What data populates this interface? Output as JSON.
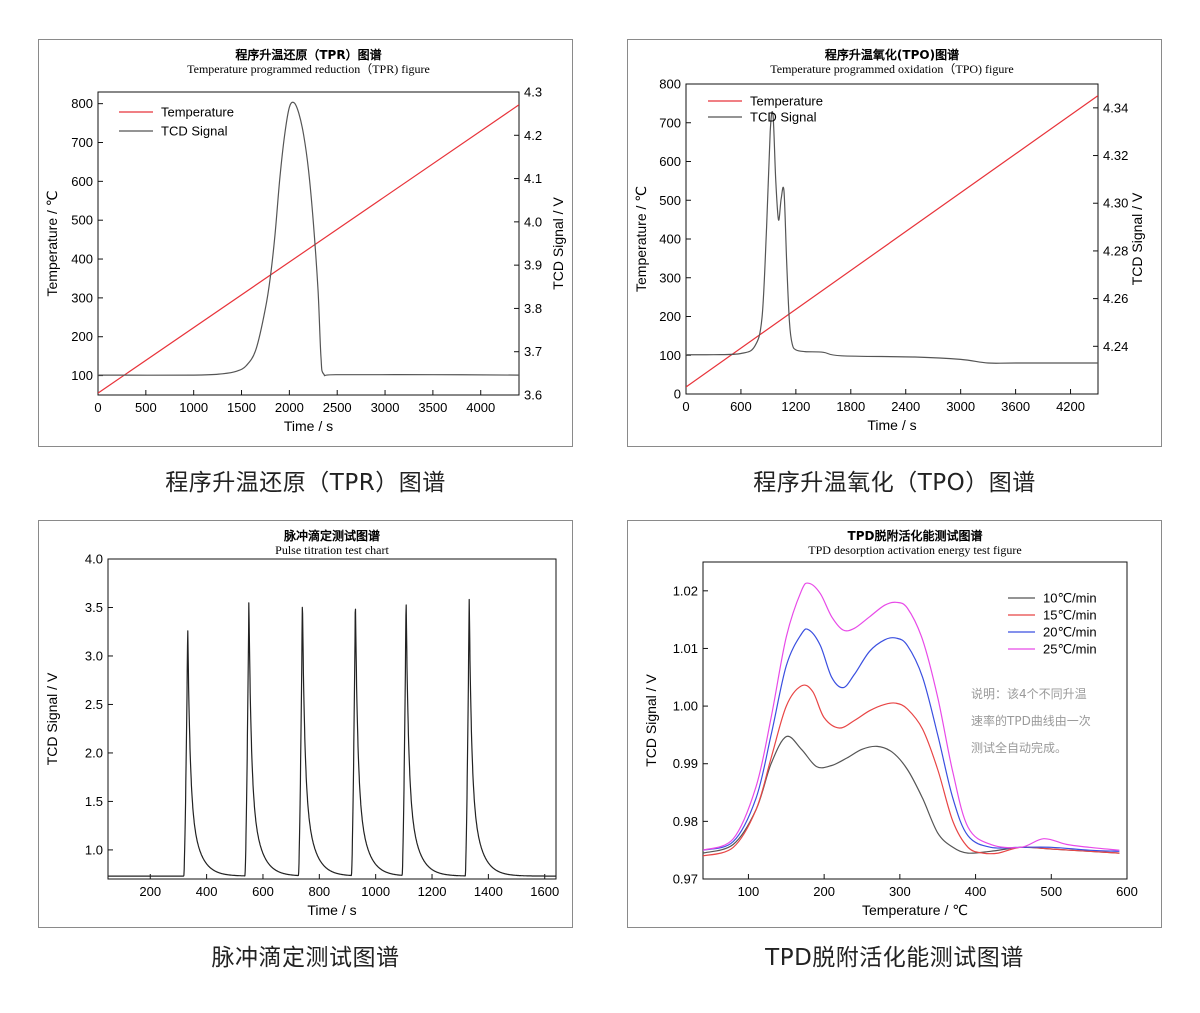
{
  "chart_data": [
    {
      "type": "line",
      "title": "程序升温还原（TPR）图谱",
      "subtitle": "Temperature programmed reduction（TPR) figure",
      "caption": "程序升温还原（TPR）图谱",
      "xlabel": "Time / s",
      "ylabel": "Temperature / ℃",
      "y2label": "TCD Signal / V",
      "xlim": [
        0,
        4400
      ],
      "ylim": [
        50,
        830
      ],
      "y2lim": [
        3.6,
        4.3
      ],
      "xticks": [
        0,
        500,
        1000,
        1500,
        2000,
        2500,
        3000,
        3500,
        4000
      ],
      "yticks": [
        100,
        200,
        300,
        400,
        500,
        600,
        700,
        800
      ],
      "y2ticks": [
        3.6,
        3.7,
        3.8,
        3.9,
        4.0,
        4.1,
        4.2,
        4.3
      ],
      "legend_position": "top-left",
      "series": [
        {
          "name": "Temperature",
          "axis": "left",
          "color": "#e8333a",
          "x": [
            0,
            4400
          ],
          "y": [
            55,
            797
          ]
        },
        {
          "name": "TCD Signal",
          "axis": "right",
          "color": "#555555",
          "x": [
            0,
            1000,
            1300,
            1450,
            1550,
            1650,
            1750,
            1800,
            1850,
            1900,
            1950,
            2000,
            2050,
            2100,
            2150,
            2200,
            2250,
            2300,
            2330,
            2360,
            2500,
            3500,
            4400
          ],
          "y": [
            3.646,
            3.646,
            3.649,
            3.655,
            3.668,
            3.705,
            3.8,
            3.87,
            3.97,
            4.1,
            4.2,
            4.265,
            4.275,
            4.25,
            4.2,
            4.12,
            4.0,
            3.84,
            3.69,
            3.648,
            3.647,
            3.647,
            3.646
          ]
        }
      ]
    },
    {
      "type": "line",
      "title": "程序升温氧化(TPO)图谱",
      "subtitle": "Temperature programmed oxidation（TPO) figure",
      "caption": "程序升温氧化（TPO）图谱",
      "xlabel": "Time / s",
      "ylabel": "Temperature / ℃",
      "y2label": "TCD Signal / V",
      "xlim": [
        0,
        4500
      ],
      "ylim": [
        0,
        800
      ],
      "y2lim": [
        4.22,
        4.35
      ],
      "xticks": [
        0,
        600,
        1200,
        1800,
        2400,
        3000,
        3600,
        4200
      ],
      "yticks": [
        0,
        100,
        200,
        300,
        400,
        500,
        600,
        700,
        800
      ],
      "y2ticks": [
        4.24,
        4.26,
        4.28,
        4.3,
        4.32,
        4.34
      ],
      "legend_position": "top-left",
      "series": [
        {
          "name": "Temperature",
          "axis": "left",
          "color": "#e8333a",
          "x": [
            0,
            4500
          ],
          "y": [
            18,
            770
          ]
        },
        {
          "name": "TCD Signal",
          "axis": "right",
          "color": "#555555",
          "x": [
            0,
            300,
            600,
            750,
            830,
            880,
            920,
            950,
            980,
            1010,
            1040,
            1070,
            1100,
            1130,
            1160,
            1200,
            1300,
            1500,
            1700,
            2500,
            3000,
            3300,
            3600,
            4500
          ],
          "y": [
            4.2365,
            4.2365,
            4.237,
            4.24,
            4.252,
            4.29,
            4.33,
            4.337,
            4.31,
            4.293,
            4.302,
            4.305,
            4.275,
            4.25,
            4.241,
            4.2385,
            4.2378,
            4.2375,
            4.236,
            4.2355,
            4.2345,
            4.233,
            4.233,
            4.233
          ]
        }
      ]
    },
    {
      "type": "line",
      "title": "脉冲滴定测试图谱",
      "subtitle": "Pulse titration test chart",
      "caption": "脉冲滴定测试图谱",
      "xlabel": "Time / s",
      "ylabel": "TCD Signal / V",
      "xlim": [
        50,
        1640
      ],
      "ylim": [
        0.7,
        4.0
      ],
      "xticks": [
        200,
        400,
        600,
        800,
        1000,
        1200,
        1400,
        1600
      ],
      "yticks": [
        1.0,
        1.5,
        2.0,
        2.5,
        3.0,
        3.5,
        4.0
      ],
      "series": [
        {
          "name": "TCD Signal",
          "axis": "left",
          "color": "#222222",
          "baseline": 0.73,
          "peaks": [
            {
              "t": 333,
              "h": 3.31
            },
            {
              "t": 550,
              "h": 3.59
            },
            {
              "t": 740,
              "h": 3.6
            },
            {
              "t": 928,
              "h": 3.6
            },
            {
              "t": 1108,
              "h": 3.61
            },
            {
              "t": 1332,
              "h": 3.6
            }
          ]
        }
      ]
    },
    {
      "type": "line",
      "title": "TPD脱附活化能测试图谱",
      "subtitle": "TPD desorption activation energy test figure",
      "caption": "TPD脱附活化能测试图谱",
      "xlabel": "Temperature / ℃",
      "ylabel": "TCD Signal / V",
      "xlim": [
        40,
        600
      ],
      "ylim": [
        0.97,
        1.025
      ],
      "xticks": [
        100,
        200,
        300,
        400,
        500,
        600
      ],
      "yticks": [
        0.97,
        0.98,
        0.99,
        1.0,
        1.01,
        1.02
      ],
      "legend_position": "top-right",
      "note": [
        "说明：该4个不同升温",
        "速率的TPD曲线由一次",
        "测试全自动完成。"
      ],
      "series": [
        {
          "name": "10℃/min",
          "color": "#555555",
          "x": [
            40,
            80,
            110,
            130,
            150,
            170,
            190,
            210,
            230,
            250,
            270,
            290,
            310,
            330,
            350,
            370,
            390,
            420,
            460,
            500,
            550,
            590
          ],
          "y": [
            0.9745,
            0.976,
            0.982,
            0.99,
            0.9947,
            0.9925,
            0.9895,
            0.9897,
            0.991,
            0.9925,
            0.993,
            0.992,
            0.989,
            0.984,
            0.978,
            0.9755,
            0.9745,
            0.9748,
            0.9755,
            0.9752,
            0.9748,
            0.9745
          ]
        },
        {
          "name": "15℃/min",
          "color": "#e84545",
          "x": [
            40,
            80,
            110,
            130,
            150,
            170,
            185,
            200,
            220,
            240,
            260,
            280,
            295,
            310,
            330,
            350,
            370,
            390,
            410,
            430,
            460,
            500,
            550,
            590
          ],
          "y": [
            0.974,
            0.9755,
            0.982,
            0.991,
            1.0,
            1.0035,
            1.0025,
            0.998,
            0.9962,
            0.9975,
            0.9992,
            1.0003,
            1.0005,
            0.9995,
            0.996,
            0.989,
            0.98,
            0.9755,
            0.9745,
            0.9745,
            0.9755,
            0.9752,
            0.9748,
            0.9745
          ]
        },
        {
          "name": "20℃/min",
          "color": "#3a4fe0",
          "x": [
            40,
            80,
            110,
            130,
            150,
            170,
            180,
            195,
            210,
            225,
            240,
            260,
            280,
            295,
            310,
            330,
            350,
            370,
            390,
            420,
            460,
            500,
            550,
            590
          ],
          "y": [
            0.975,
            0.9765,
            0.984,
            0.995,
            1.007,
            1.0125,
            1.0132,
            1.0105,
            1.005,
            1.0032,
            1.0055,
            1.0095,
            1.0115,
            1.0118,
            1.0105,
            1.005,
            0.995,
            0.984,
            0.9775,
            0.9755,
            0.9755,
            0.9755,
            0.975,
            0.9748
          ]
        },
        {
          "name": "25℃/min",
          "color": "#e84ae8",
          "x": [
            40,
            80,
            110,
            130,
            150,
            170,
            180,
            195,
            210,
            225,
            240,
            260,
            280,
            295,
            310,
            330,
            350,
            370,
            390,
            420,
            460,
            490,
            520,
            550,
            590
          ],
          "y": [
            0.975,
            0.977,
            0.986,
            0.998,
            1.012,
            1.02,
            1.0213,
            1.0195,
            1.0155,
            1.0132,
            1.0135,
            1.0155,
            1.0175,
            1.018,
            1.017,
            1.0115,
            1.0015,
            0.9885,
            0.979,
            0.976,
            0.9755,
            0.977,
            0.976,
            0.9755,
            0.975
          ]
        }
      ]
    }
  ]
}
